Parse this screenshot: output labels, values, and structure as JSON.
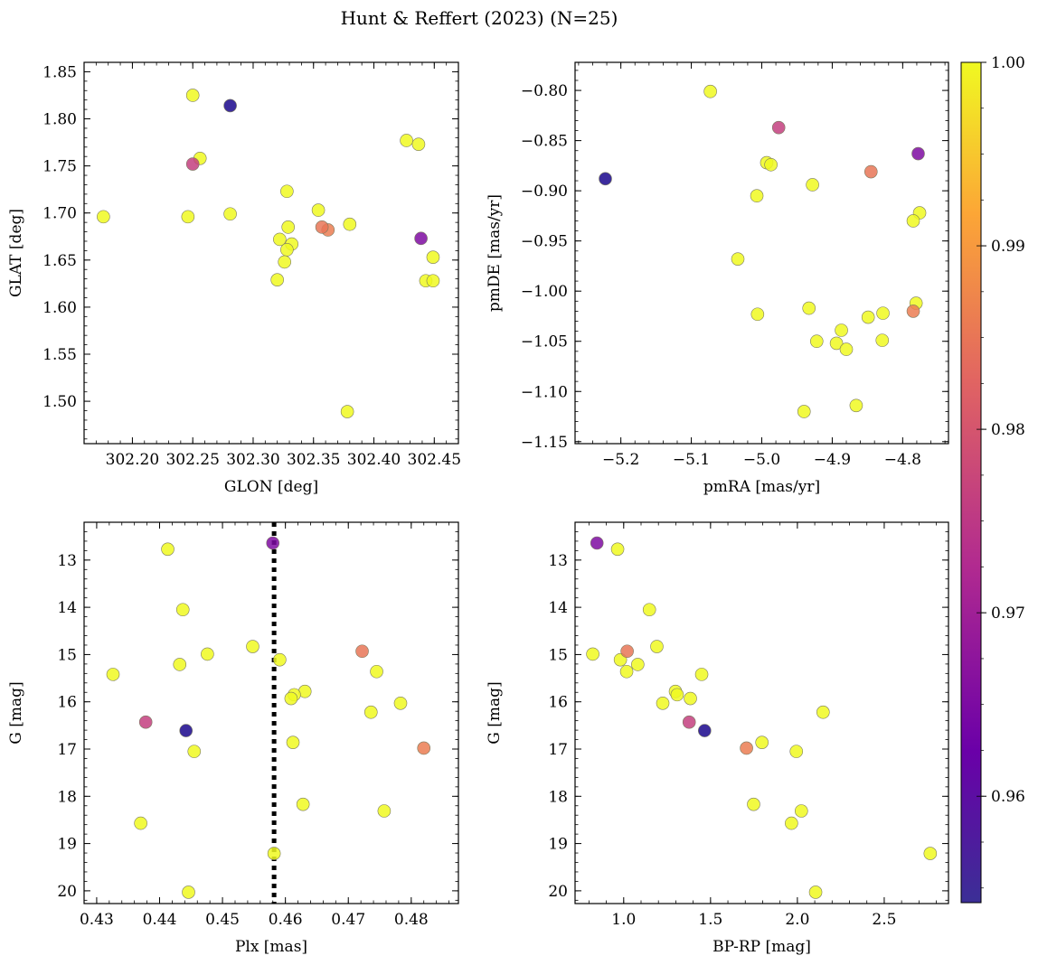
{
  "suptitle": "Hunt & Reffert (2023) (N=25)",
  "colorbar": {
    "range": [
      0.9542,
      1.0
    ],
    "ticks": [
      0.96,
      0.97,
      0.98,
      0.99,
      1.0
    ],
    "tick_labels": [
      "0.96",
      "0.97",
      "0.98",
      "0.99",
      "1.00"
    ],
    "colormap": [
      "#0d0887",
      "#6a00a8",
      "#b12a90",
      "#e16462",
      "#fca636",
      "#f0f921"
    ]
  },
  "chart_data": [
    {
      "type": "scatter",
      "xlabel": "GLON [deg]",
      "ylabel": "GLAT [deg]",
      "xlim": [
        302.16,
        302.47
      ],
      "ylim": [
        1.455,
        1.86
      ],
      "xticks": [
        302.2,
        302.25,
        302.3,
        302.35,
        302.4,
        302.45
      ],
      "xtick_labels": [
        "302.20",
        "302.25",
        "302.30",
        "302.35",
        "302.40",
        "302.45"
      ],
      "yticks": [
        1.5,
        1.55,
        1.6,
        1.65,
        1.7,
        1.75,
        1.8,
        1.85
      ],
      "ytick_labels": [
        "1.50",
        "1.55",
        "1.60",
        "1.65",
        "1.70",
        "1.75",
        "1.80",
        "1.85"
      ],
      "points": [
        {
          "x": 302.25,
          "y": 1.825,
          "c": 1.0
        },
        {
          "x": 302.281,
          "y": 1.814,
          "c": 0.9555
        },
        {
          "x": 302.256,
          "y": 1.758,
          "c": 1.0
        },
        {
          "x": 302.25,
          "y": 1.752,
          "c": 0.976
        },
        {
          "x": 302.176,
          "y": 1.696,
          "c": 1.0
        },
        {
          "x": 302.246,
          "y": 1.696,
          "c": 1.0
        },
        {
          "x": 302.281,
          "y": 1.699,
          "c": 1.0
        },
        {
          "x": 302.328,
          "y": 1.723,
          "c": 1.0
        },
        {
          "x": 302.329,
          "y": 1.685,
          "c": 1.0
        },
        {
          "x": 302.322,
          "y": 1.672,
          "c": 1.0
        },
        {
          "x": 302.332,
          "y": 1.667,
          "c": 1.0
        },
        {
          "x": 302.328,
          "y": 1.661,
          "c": 1.0
        },
        {
          "x": 302.326,
          "y": 1.648,
          "c": 1.0
        },
        {
          "x": 302.32,
          "y": 1.629,
          "c": 1.0
        },
        {
          "x": 302.354,
          "y": 1.703,
          "c": 1.0
        },
        {
          "x": 302.357,
          "y": 1.685,
          "c": 0.984
        },
        {
          "x": 302.362,
          "y": 1.682,
          "c": 0.985
        },
        {
          "x": 302.38,
          "y": 1.688,
          "c": 1.0
        },
        {
          "x": 302.378,
          "y": 1.489,
          "c": 1.0
        },
        {
          "x": 302.427,
          "y": 1.777,
          "c": 1.0
        },
        {
          "x": 302.437,
          "y": 1.773,
          "c": 1.0
        },
        {
          "x": 302.439,
          "y": 1.673,
          "c": 0.966
        },
        {
          "x": 302.449,
          "y": 1.653,
          "c": 1.0
        },
        {
          "x": 302.443,
          "y": 1.628,
          "c": 1.0
        },
        {
          "x": 302.449,
          "y": 1.628,
          "c": 1.0
        }
      ]
    },
    {
      "type": "scatter",
      "xlabel": "pmRA [mas/yr]",
      "ylabel": "pmDE [mas/yr]",
      "xlim": [
        -5.265,
        -4.735
      ],
      "ylim": [
        -1.152,
        -0.772
      ],
      "xticks": [
        -5.2,
        -5.1,
        -5.0,
        -4.9,
        -4.8
      ],
      "xtick_labels": [
        "−5.2",
        "−5.1",
        "−5.0",
        "−4.9",
        "−4.8"
      ],
      "yticks": [
        -1.15,
        -1.1,
        -1.05,
        -1.0,
        -0.95,
        -0.9,
        -0.85,
        -0.8
      ],
      "ytick_labels": [
        "−1.15",
        "−1.10",
        "−1.05",
        "−1.00",
        "−0.95",
        "−0.90",
        "−0.85",
        "−0.80"
      ],
      "points": [
        {
          "x": -5.073,
          "y": -0.801,
          "c": 1.0
        },
        {
          "x": -4.976,
          "y": -0.837,
          "c": 0.976
        },
        {
          "x": -4.778,
          "y": -0.863,
          "c": 0.966
        },
        {
          "x": -5.222,
          "y": -0.888,
          "c": 0.9555
        },
        {
          "x": -4.993,
          "y": -0.872,
          "c": 1.0
        },
        {
          "x": -4.987,
          "y": -0.874,
          "c": 1.0
        },
        {
          "x": -4.845,
          "y": -0.881,
          "c": 0.984
        },
        {
          "x": -4.928,
          "y": -0.894,
          "c": 1.0
        },
        {
          "x": -5.007,
          "y": -0.905,
          "c": 1.0
        },
        {
          "x": -4.776,
          "y": -0.922,
          "c": 1.0
        },
        {
          "x": -4.785,
          "y": -0.93,
          "c": 1.0
        },
        {
          "x": -5.034,
          "y": -0.968,
          "c": 1.0
        },
        {
          "x": -4.781,
          "y": -1.012,
          "c": 1.0
        },
        {
          "x": -4.785,
          "y": -1.02,
          "c": 0.985
        },
        {
          "x": -4.933,
          "y": -1.017,
          "c": 1.0
        },
        {
          "x": -5.006,
          "y": -1.023,
          "c": 1.0
        },
        {
          "x": -4.828,
          "y": -1.022,
          "c": 1.0
        },
        {
          "x": -4.849,
          "y": -1.026,
          "c": 1.0
        },
        {
          "x": -4.887,
          "y": -1.039,
          "c": 1.0
        },
        {
          "x": -4.922,
          "y": -1.05,
          "c": 1.0
        },
        {
          "x": -4.829,
          "y": -1.049,
          "c": 1.0
        },
        {
          "x": -4.894,
          "y": -1.052,
          "c": 1.0
        },
        {
          "x": -4.88,
          "y": -1.058,
          "c": 1.0
        },
        {
          "x": -4.866,
          "y": -1.114,
          "c": 1.0
        },
        {
          "x": -4.94,
          "y": -1.12,
          "c": 1.0
        }
      ]
    },
    {
      "type": "scatter",
      "xlabel": "Plx [mas]",
      "ylabel": "G [mag]",
      "xlim": [
        0.428,
        0.4875
      ],
      "ylim": [
        20.27,
        12.2
      ],
      "y_inverted": true,
      "vline": {
        "x": 0.4582,
        "style": "dotted",
        "color": "#000000"
      },
      "xticks": [
        0.43,
        0.44,
        0.45,
        0.46,
        0.47,
        0.48
      ],
      "xtick_labels": [
        "0.43",
        "0.44",
        "0.45",
        "0.46",
        "0.47",
        "0.48"
      ],
      "yticks": [
        13,
        14,
        15,
        16,
        17,
        18,
        19,
        20
      ],
      "ytick_labels": [
        "13",
        "14",
        "15",
        "16",
        "17",
        "18",
        "19",
        "20"
      ],
      "points": [
        {
          "x": 0.4413,
          "y": 12.77,
          "c": 1.0
        },
        {
          "x": 0.458,
          "y": 12.64,
          "c": 0.966
        },
        {
          "x": 0.4437,
          "y": 14.05,
          "c": 1.0
        },
        {
          "x": 0.4548,
          "y": 14.83,
          "c": 1.0
        },
        {
          "x": 0.4476,
          "y": 14.99,
          "c": 1.0
        },
        {
          "x": 0.4722,
          "y": 14.93,
          "c": 0.984
        },
        {
          "x": 0.4591,
          "y": 15.11,
          "c": 1.0
        },
        {
          "x": 0.4432,
          "y": 15.21,
          "c": 1.0
        },
        {
          "x": 0.4745,
          "y": 15.36,
          "c": 1.0
        },
        {
          "x": 0.4326,
          "y": 15.42,
          "c": 1.0
        },
        {
          "x": 0.4631,
          "y": 15.78,
          "c": 1.0
        },
        {
          "x": 0.4614,
          "y": 15.85,
          "c": 1.0
        },
        {
          "x": 0.4609,
          "y": 15.93,
          "c": 1.0
        },
        {
          "x": 0.4783,
          "y": 16.03,
          "c": 1.0
        },
        {
          "x": 0.4736,
          "y": 16.22,
          "c": 1.0
        },
        {
          "x": 0.4378,
          "y": 16.43,
          "c": 0.976
        },
        {
          "x": 0.4442,
          "y": 16.61,
          "c": 0.9555
        },
        {
          "x": 0.4612,
          "y": 16.86,
          "c": 1.0
        },
        {
          "x": 0.482,
          "y": 16.98,
          "c": 0.985
        },
        {
          "x": 0.4455,
          "y": 17.05,
          "c": 1.0
        },
        {
          "x": 0.4628,
          "y": 18.17,
          "c": 1.0
        },
        {
          "x": 0.4757,
          "y": 18.31,
          "c": 1.0
        },
        {
          "x": 0.437,
          "y": 18.57,
          "c": 1.0
        },
        {
          "x": 0.4582,
          "y": 19.21,
          "c": 1.0
        },
        {
          "x": 0.4446,
          "y": 20.03,
          "c": 1.0
        }
      ]
    },
    {
      "type": "scatter",
      "xlabel": "BP-RP [mag]",
      "ylabel": "G [mag]",
      "xlim": [
        0.72,
        2.87
      ],
      "ylim": [
        20.27,
        12.2
      ],
      "y_inverted": true,
      "xticks": [
        1.0,
        1.5,
        2.0,
        2.5
      ],
      "xtick_labels": [
        "1.0",
        "1.5",
        "2.0",
        "2.5"
      ],
      "yticks": [
        13,
        14,
        15,
        16,
        17,
        18,
        19,
        20
      ],
      "ytick_labels": [
        "13",
        "14",
        "15",
        "16",
        "17",
        "18",
        "19",
        "20"
      ],
      "points": [
        {
          "x": 0.846,
          "y": 12.64,
          "c": 0.966
        },
        {
          "x": 0.965,
          "y": 12.77,
          "c": 1.0
        },
        {
          "x": 1.148,
          "y": 14.05,
          "c": 1.0
        },
        {
          "x": 1.191,
          "y": 14.83,
          "c": 1.0
        },
        {
          "x": 0.822,
          "y": 14.99,
          "c": 1.0
        },
        {
          "x": 1.02,
          "y": 14.93,
          "c": 0.984
        },
        {
          "x": 0.981,
          "y": 15.11,
          "c": 1.0
        },
        {
          "x": 1.081,
          "y": 15.21,
          "c": 1.0
        },
        {
          "x": 1.017,
          "y": 15.36,
          "c": 1.0
        },
        {
          "x": 1.449,
          "y": 15.42,
          "c": 1.0
        },
        {
          "x": 1.298,
          "y": 15.78,
          "c": 1.0
        },
        {
          "x": 1.308,
          "y": 15.85,
          "c": 1.0
        },
        {
          "x": 1.384,
          "y": 15.93,
          "c": 1.0
        },
        {
          "x": 1.225,
          "y": 16.03,
          "c": 1.0
        },
        {
          "x": 2.148,
          "y": 16.22,
          "c": 1.0
        },
        {
          "x": 1.377,
          "y": 16.43,
          "c": 0.976
        },
        {
          "x": 1.466,
          "y": 16.61,
          "c": 0.9555
        },
        {
          "x": 1.796,
          "y": 16.86,
          "c": 1.0
        },
        {
          "x": 1.707,
          "y": 16.98,
          "c": 0.985
        },
        {
          "x": 1.994,
          "y": 17.05,
          "c": 1.0
        },
        {
          "x": 1.748,
          "y": 18.17,
          "c": 1.0
        },
        {
          "x": 2.023,
          "y": 18.31,
          "c": 1.0
        },
        {
          "x": 1.966,
          "y": 18.57,
          "c": 1.0
        },
        {
          "x": 2.765,
          "y": 19.21,
          "c": 1.0
        },
        {
          "x": 2.105,
          "y": 20.03,
          "c": 1.0
        }
      ]
    }
  ]
}
